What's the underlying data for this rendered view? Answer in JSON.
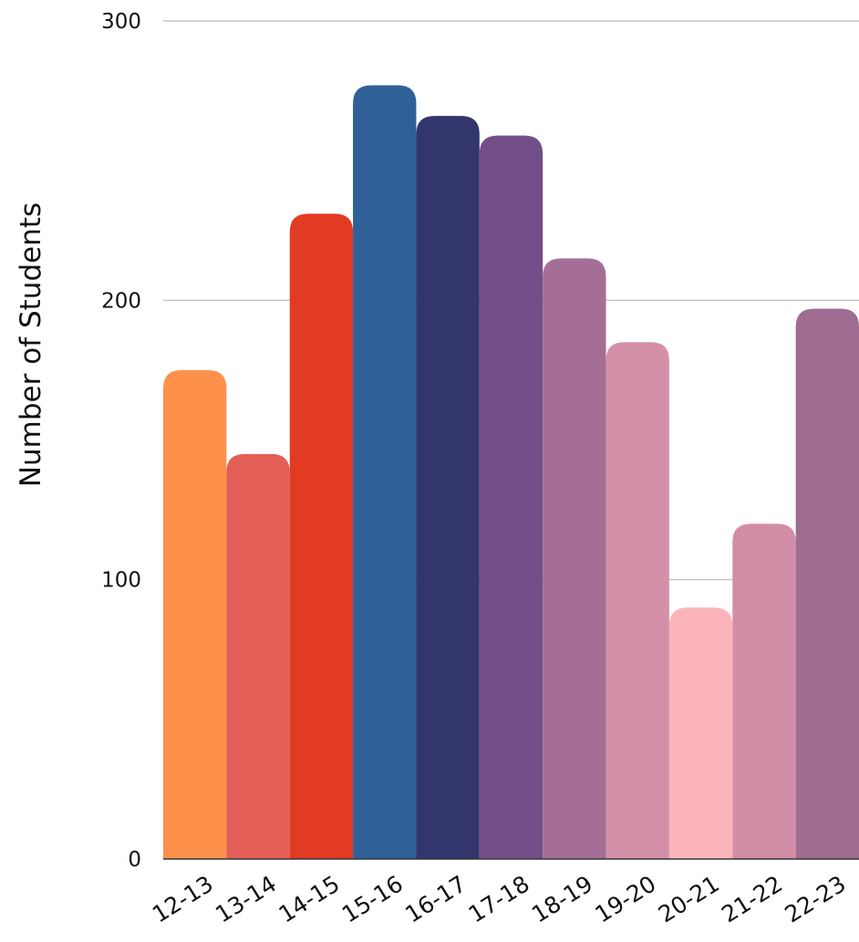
{
  "chart_data": {
    "type": "bar",
    "title": "",
    "xlabel": "",
    "ylabel": "Number of Students",
    "ylim": [
      0,
      300
    ],
    "yticks": [
      0,
      100,
      200,
      300
    ],
    "grid": true,
    "categories": [
      "12-13",
      "13-14",
      "14-15",
      "15-16",
      "16-17",
      "17-18",
      "18-19",
      "19-20",
      "20-21",
      "21-22",
      "22-23"
    ],
    "values": [
      175,
      145,
      231,
      277,
      266,
      259,
      215,
      185,
      90,
      120,
      197
    ],
    "colors": [
      "#fd914c",
      "#e45f57",
      "#e23b24",
      "#2f6098",
      "#32366c",
      "#734f8a",
      "#a56e97",
      "#d590a9",
      "#fbb5ba",
      "#d38ea7",
      "#9f6c92"
    ]
  }
}
